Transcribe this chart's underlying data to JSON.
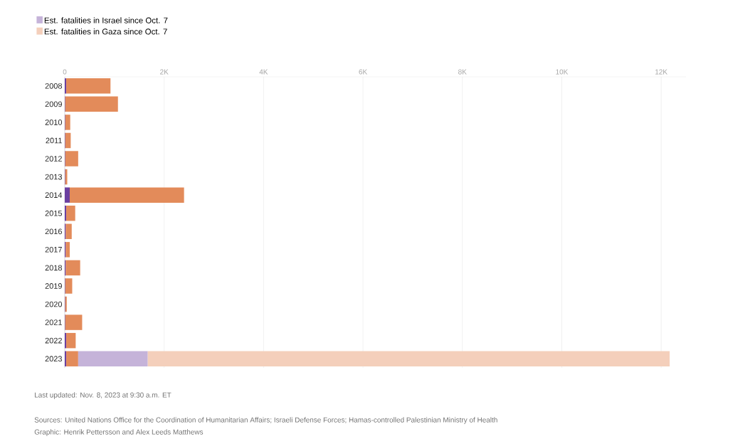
{
  "chart_data": {
    "type": "bar",
    "orientation": "horizontal",
    "stacked": true,
    "categories": [
      "2008",
      "2009",
      "2010",
      "2011",
      "2012",
      "2013",
      "2014",
      "2015",
      "2016",
      "2017",
      "2018",
      "2019",
      "2020",
      "2021",
      "2022",
      "2023"
    ],
    "series": [
      {
        "color": "#6b3fa0",
        "values": [
          30,
          10,
          10,
          10,
          10,
          10,
          100,
          30,
          20,
          20,
          20,
          10,
          10,
          10,
          30,
          30
        ]
      },
      {
        "color": "#e38b5a",
        "values": [
          890,
          1060,
          100,
          110,
          260,
          40,
          2300,
          180,
          120,
          80,
          290,
          140,
          30,
          340,
          190,
          240
        ]
      },
      {
        "name": "Est. fatalities in Israel since Oct. 7",
        "color": "#c5b3d9",
        "values": [
          null,
          null,
          null,
          null,
          null,
          null,
          null,
          null,
          null,
          null,
          null,
          null,
          null,
          null,
          null,
          1400
        ]
      },
      {
        "name": "Est. fatalities in Gaza since Oct. 7",
        "color": "#f4cfbb",
        "values": [
          null,
          null,
          null,
          null,
          null,
          null,
          null,
          null,
          null,
          null,
          null,
          null,
          null,
          null,
          null,
          10500
        ]
      }
    ],
    "xlim": [
      0,
      12500
    ],
    "xticks": [
      0,
      {
        "value": 2000,
        "label": "2K"
      },
      {
        "value": 4000,
        "label": "4K"
      },
      {
        "value": 6000,
        "label": "6K"
      },
      {
        "value": 8000,
        "label": "8K"
      },
      {
        "value": 10000,
        "label": "10K"
      },
      {
        "value": 12000,
        "label": "12K"
      }
    ],
    "grid": "x",
    "legend": "top left",
    "annotations": [
      "Last updated: Nov. 8, 2023 at 9:30 a.m. ET",
      "Sources: United Nations Office for the Coordination of Humanitarian Affairs; Israeli Defense Forces; Hamas-controlled Palestinian Ministry of Health",
      "Graphic: Henrik Pettersson and Alex Leeds Matthews"
    ]
  }
}
